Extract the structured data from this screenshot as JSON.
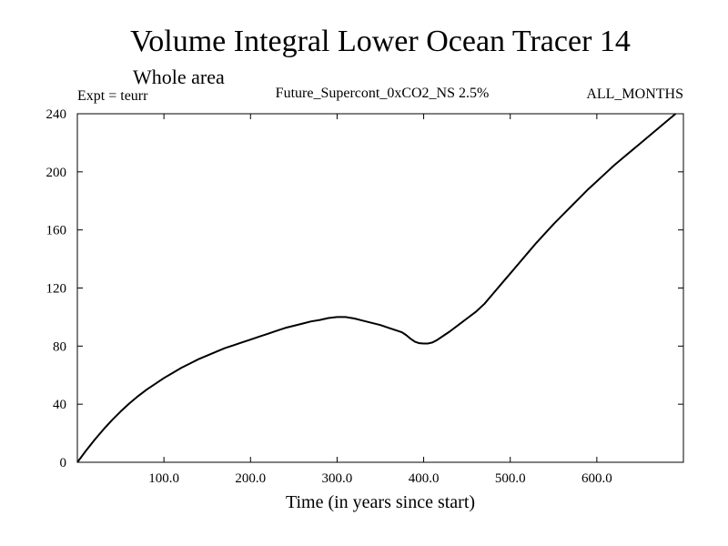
{
  "chart_data": {
    "type": "line",
    "title": "Volume Integral Lower Ocean Tracer 14",
    "subtitle": "Whole area",
    "experiment_label": "Expt = teurr",
    "run_label": "Future_Supercont_0xCO2_NS 2.5%",
    "months_label": "ALL_MONTHS",
    "xlabel": "Time (in years since start)",
    "ylabel": "",
    "xlim": [
      0,
      700
    ],
    "ylim": [
      0,
      240
    ],
    "x_ticks": [
      100,
      200,
      300,
      400,
      500,
      600
    ],
    "x_tick_labels": [
      "100.0",
      "200.0",
      "300.0",
      "400.0",
      "500.0",
      "600.0"
    ],
    "y_ticks": [
      0,
      40,
      80,
      120,
      160,
      200,
      240
    ],
    "y_tick_labels": [
      "0",
      "40",
      "80",
      "120",
      "160",
      "200",
      "240"
    ],
    "grid": false,
    "series": [
      {
        "x": [
          0,
          10,
          20,
          30,
          40,
          50,
          60,
          70,
          80,
          90,
          100,
          110,
          120,
          130,
          140,
          150,
          160,
          170,
          180,
          190,
          200,
          210,
          220,
          230,
          240,
          250,
          260,
          270,
          280,
          290,
          300,
          310,
          320,
          330,
          340,
          350,
          360,
          370,
          375,
          380,
          385,
          390,
          395,
          400,
          405,
          410,
          415,
          420,
          430,
          440,
          450,
          460,
          470,
          480,
          490,
          500,
          510,
          520,
          530,
          540,
          550,
          560,
          570,
          580,
          590,
          600,
          610,
          620,
          630,
          640,
          650,
          660,
          670,
          680,
          690,
          699
        ],
        "values": [
          0,
          8,
          15.5,
          22.5,
          29,
          35,
          40.5,
          45.5,
          50,
          54,
          58,
          61.5,
          65,
          68,
          71,
          73.5,
          76,
          78.5,
          80.5,
          82.5,
          84.5,
          86.5,
          88.5,
          90.5,
          92.5,
          94,
          95.5,
          97,
          98,
          99.3,
          100,
          100,
          99,
          97.5,
          96,
          94.5,
          92.5,
          90.5,
          89.5,
          87.5,
          85,
          83,
          82,
          81.8,
          81.8,
          82.5,
          84,
          86,
          90,
          94.5,
          99,
          103.5,
          109,
          116,
          123,
          130,
          137,
          144,
          151,
          157.5,
          164,
          170,
          176,
          182,
          188,
          193.5,
          199,
          204.5,
          209.5,
          214.5,
          219.5,
          224.5,
          229.5,
          234.5,
          239.5,
          244
        ]
      }
    ]
  }
}
